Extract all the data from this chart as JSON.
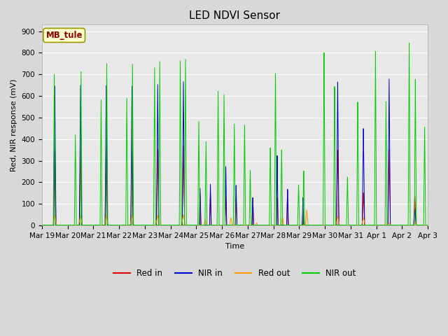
{
  "title": "LED NDVI Sensor",
  "xlabel": "Time",
  "ylabel": "Red, NIR response (mV)",
  "ylim": [
    0,
    930
  ],
  "yticks": [
    0,
    100,
    200,
    300,
    400,
    500,
    600,
    700,
    800,
    900
  ],
  "plot_bg_color": "#e8e8e8",
  "fig_bg_color": "#d8d8d8",
  "legend_label": "MB_tule",
  "legend_box_facecolor": "#ffffcc",
  "legend_box_edgecolor": "#999900",
  "series": {
    "red_in": {
      "color": "#dd0000",
      "label": "Red in"
    },
    "nir_in": {
      "color": "#0000cc",
      "label": "NIR in"
    },
    "red_out": {
      "color": "#ff9900",
      "label": "Red out"
    },
    "nir_out": {
      "color": "#00cc00",
      "label": "NIR out"
    }
  },
  "xtick_labels": [
    "Mar 19",
    "Mar 20",
    "Mar 21",
    "Mar 22",
    "Mar 23",
    "Mar 24",
    "Mar 25",
    "Mar 26",
    "Mar 27",
    "Mar 28",
    "Mar 29",
    "Mar 30",
    "Mar 31",
    "Apr 1",
    "Apr 2",
    "Apr 3"
  ],
  "num_days": 15,
  "title_fontsize": 11,
  "axis_fontsize": 8,
  "tick_fontsize": 7.5
}
